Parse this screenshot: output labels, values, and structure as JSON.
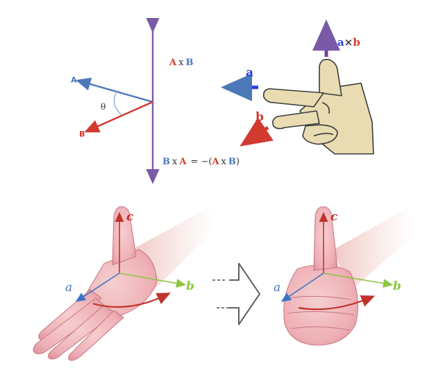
{
  "colors": {
    "vector_a_blue": "#4a78b8",
    "vector_b_red": "#d23a2f",
    "normal_purple": "#7a5aa6",
    "hand_fill": "#e9dcb3",
    "hand_outline": "#3a3a3a",
    "pink_skin": "#f0b9bd",
    "pink_skin_dark": "#dc8b95",
    "axis_a_blue": "#3f74c4",
    "axis_b_green": "#8dc63f",
    "axis_c_red": "#c0332b",
    "transition_arrow_gray": "#606060"
  },
  "diagram_1": {
    "vector_a_label": "A",
    "vector_b_label": "B",
    "angle_label": "θ",
    "cross_top": {
      "left": "A",
      "op": "x",
      "right": "B"
    },
    "cross_bottom": {
      "left": "B",
      "op1": "x",
      "mid": "A",
      "eq": "= −(",
      "r_left": "A",
      "op2": "x",
      "r_right": "B",
      "close": ")"
    }
  },
  "diagram_2": {
    "a_label": "a",
    "b_label": "b",
    "product": {
      "left": "a",
      "op": "×",
      "right": "b"
    }
  },
  "diagram_3": {
    "left_hand": {
      "a_label": "a",
      "b_label": "b",
      "c_label": "c"
    },
    "right_hand": {
      "a_label": "a",
      "b_label": "b",
      "c_label": "c"
    }
  }
}
